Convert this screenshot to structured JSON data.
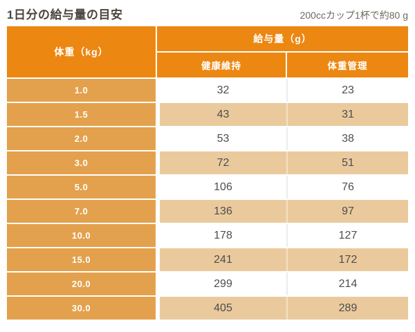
{
  "chart_data": {
    "type": "table",
    "title": "1日分の給与量の目安",
    "note": "200ccカップ1杯で約80 g",
    "weight_header": "体重（kg）",
    "amount_group_header": "給与量（g）",
    "sub_headers": [
      "健康維持",
      "体重管理"
    ],
    "rows": [
      {
        "weight": "1.0",
        "maintenance": 32,
        "management": 23
      },
      {
        "weight": "1.5",
        "maintenance": 43,
        "management": 31
      },
      {
        "weight": "2.0",
        "maintenance": 53,
        "management": 38
      },
      {
        "weight": "3.0",
        "maintenance": 72,
        "management": 51
      },
      {
        "weight": "5.0",
        "maintenance": 106,
        "management": 76
      },
      {
        "weight": "7.0",
        "maintenance": 136,
        "management": 97
      },
      {
        "weight": "10.0",
        "maintenance": 178,
        "management": 127
      },
      {
        "weight": "15.0",
        "maintenance": 241,
        "management": 172
      },
      {
        "weight": "20.0",
        "maintenance": 299,
        "management": 214
      },
      {
        "weight": "30.0",
        "maintenance": 405,
        "management": 289
      }
    ]
  },
  "colors": {
    "header_orange": "#ec8712",
    "weight_cell_orange": "#e3a14d",
    "alt_row_tan": "#eaca9d",
    "divider_on_white": "#ececec",
    "divider_on_tan": "#f3e2c6",
    "value_text": "#4d4d4d",
    "title_text": "#4c453f",
    "note_text": "#6e6861",
    "header_text": "#ffffff"
  }
}
